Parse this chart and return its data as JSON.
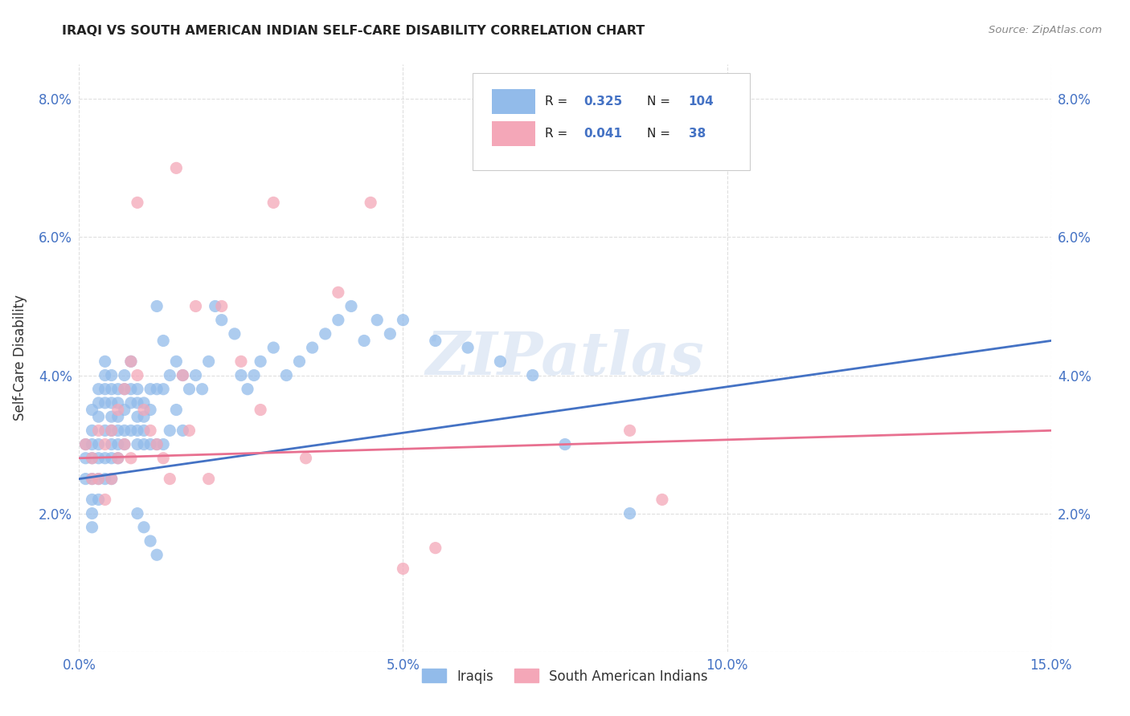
{
  "title": "IRAQI VS SOUTH AMERICAN INDIAN SELF-CARE DISABILITY CORRELATION CHART",
  "source": "Source: ZipAtlas.com",
  "ylabel": "Self-Care Disability",
  "xlim": [
    0.0,
    0.15
  ],
  "ylim": [
    0.0,
    0.085
  ],
  "xtick_vals": [
    0.0,
    0.05,
    0.1,
    0.15
  ],
  "ytick_vals": [
    0.0,
    0.02,
    0.04,
    0.06,
    0.08
  ],
  "ytick_labels": [
    "",
    "2.0%",
    "4.0%",
    "6.0%",
    "8.0%"
  ],
  "xtick_labels": [
    "0.0%",
    "5.0%",
    "10.0%",
    "15.0%"
  ],
  "legend_R1": "0.325",
  "legend_N1": "104",
  "legend_R2": "0.041",
  "legend_N2": "38",
  "blue_color": "#92BBEA",
  "pink_color": "#F4A7B8",
  "blue_line_color": "#4472C4",
  "pink_line_color": "#E87090",
  "tick_color": "#4472C4",
  "label1": "Iraqis",
  "label2": "South American Indians",
  "watermark": "ZIPatlas",
  "blue_x": [
    0.001,
    0.001,
    0.001,
    0.002,
    0.002,
    0.002,
    0.002,
    0.002,
    0.002,
    0.002,
    0.002,
    0.003,
    0.003,
    0.003,
    0.003,
    0.003,
    0.003,
    0.003,
    0.004,
    0.004,
    0.004,
    0.004,
    0.004,
    0.004,
    0.004,
    0.005,
    0.005,
    0.005,
    0.005,
    0.005,
    0.005,
    0.005,
    0.005,
    0.006,
    0.006,
    0.006,
    0.006,
    0.006,
    0.006,
    0.007,
    0.007,
    0.007,
    0.007,
    0.007,
    0.008,
    0.008,
    0.008,
    0.008,
    0.009,
    0.009,
    0.009,
    0.009,
    0.009,
    0.01,
    0.01,
    0.01,
    0.01,
    0.011,
    0.011,
    0.011,
    0.012,
    0.012,
    0.012,
    0.013,
    0.013,
    0.013,
    0.014,
    0.014,
    0.015,
    0.015,
    0.016,
    0.016,
    0.017,
    0.018,
    0.019,
    0.02,
    0.021,
    0.022,
    0.024,
    0.025,
    0.026,
    0.027,
    0.028,
    0.03,
    0.032,
    0.034,
    0.036,
    0.038,
    0.04,
    0.042,
    0.044,
    0.046,
    0.048,
    0.05,
    0.055,
    0.06,
    0.065,
    0.07,
    0.075,
    0.085,
    0.009,
    0.01,
    0.011,
    0.012
  ],
  "blue_y": [
    0.03,
    0.028,
    0.025,
    0.035,
    0.032,
    0.03,
    0.028,
    0.025,
    0.022,
    0.02,
    0.018,
    0.038,
    0.036,
    0.034,
    0.03,
    0.028,
    0.025,
    0.022,
    0.042,
    0.04,
    0.038,
    0.036,
    0.032,
    0.028,
    0.025,
    0.04,
    0.038,
    0.036,
    0.034,
    0.032,
    0.03,
    0.028,
    0.025,
    0.038,
    0.036,
    0.034,
    0.032,
    0.03,
    0.028,
    0.04,
    0.038,
    0.035,
    0.032,
    0.03,
    0.042,
    0.038,
    0.036,
    0.032,
    0.038,
    0.036,
    0.034,
    0.032,
    0.03,
    0.036,
    0.034,
    0.032,
    0.03,
    0.038,
    0.035,
    0.03,
    0.05,
    0.038,
    0.03,
    0.045,
    0.038,
    0.03,
    0.04,
    0.032,
    0.042,
    0.035,
    0.04,
    0.032,
    0.038,
    0.04,
    0.038,
    0.042,
    0.05,
    0.048,
    0.046,
    0.04,
    0.038,
    0.04,
    0.042,
    0.044,
    0.04,
    0.042,
    0.044,
    0.046,
    0.048,
    0.05,
    0.045,
    0.048,
    0.046,
    0.048,
    0.045,
    0.044,
    0.042,
    0.04,
    0.03,
    0.02,
    0.02,
    0.018,
    0.016,
    0.014
  ],
  "pink_x": [
    0.001,
    0.002,
    0.002,
    0.003,
    0.003,
    0.004,
    0.004,
    0.005,
    0.005,
    0.006,
    0.006,
    0.007,
    0.007,
    0.008,
    0.008,
    0.009,
    0.009,
    0.01,
    0.011,
    0.012,
    0.013,
    0.014,
    0.015,
    0.016,
    0.017,
    0.018,
    0.02,
    0.022,
    0.025,
    0.028,
    0.03,
    0.035,
    0.04,
    0.045,
    0.05,
    0.055,
    0.085,
    0.09
  ],
  "pink_y": [
    0.03,
    0.028,
    0.025,
    0.032,
    0.025,
    0.03,
    0.022,
    0.032,
    0.025,
    0.035,
    0.028,
    0.038,
    0.03,
    0.042,
    0.028,
    0.065,
    0.04,
    0.035,
    0.032,
    0.03,
    0.028,
    0.025,
    0.07,
    0.04,
    0.032,
    0.05,
    0.025,
    0.05,
    0.042,
    0.035,
    0.065,
    0.028,
    0.052,
    0.065,
    0.012,
    0.015,
    0.032,
    0.022
  ]
}
